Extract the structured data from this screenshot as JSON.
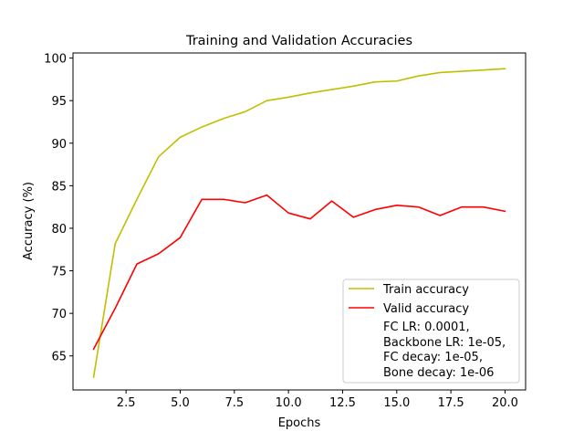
{
  "chart_data": {
    "type": "line",
    "title": "Training and Validation Accuracies",
    "xlabel": "Epochs",
    "ylabel": "Accuracy (%)",
    "xlim": [
      0.05,
      20.95
    ],
    "ylim": [
      61.0,
      100.6
    ],
    "xticks": [
      2.5,
      5.0,
      7.5,
      10.0,
      12.5,
      15.0,
      17.5,
      20.0
    ],
    "xtick_labels": [
      "2.5",
      "5.0",
      "7.5",
      "10.0",
      "12.5",
      "15.0",
      "17.5",
      "20.0"
    ],
    "yticks": [
      65,
      70,
      75,
      80,
      85,
      90,
      95,
      100
    ],
    "ytick_labels": [
      "65",
      "70",
      "75",
      "80",
      "85",
      "90",
      "95",
      "100"
    ],
    "grid": false,
    "legend_position": "lower-right",
    "x": [
      1,
      2,
      3,
      4,
      5,
      6,
      7,
      8,
      9,
      10,
      11,
      12,
      13,
      14,
      15,
      16,
      17,
      18,
      19,
      20
    ],
    "series": [
      {
        "name": "Train accuracy",
        "color": "#bfbf00",
        "values": [
          62.5,
          78.2,
          83.4,
          88.4,
          90.7,
          91.9,
          92.9,
          93.7,
          95.0,
          95.4,
          95.9,
          96.3,
          96.7,
          97.2,
          97.3,
          97.9,
          98.3,
          98.45,
          98.6,
          98.75
        ]
      },
      {
        "name": "Valid accuracy",
        "color": "#ff0000",
        "values": [
          65.8,
          70.6,
          75.8,
          77.0,
          78.9,
          83.4,
          83.4,
          83.0,
          83.9,
          81.8,
          81.1,
          83.2,
          81.3,
          82.2,
          82.7,
          82.5,
          81.5,
          82.5,
          82.5,
          82.0
        ]
      }
    ],
    "legend_note": [
      "FC LR: 0.0001,",
      "Backbone LR: 1e-05,",
      "FC decay: 1e-05,",
      "Bone decay: 1e-06"
    ]
  }
}
